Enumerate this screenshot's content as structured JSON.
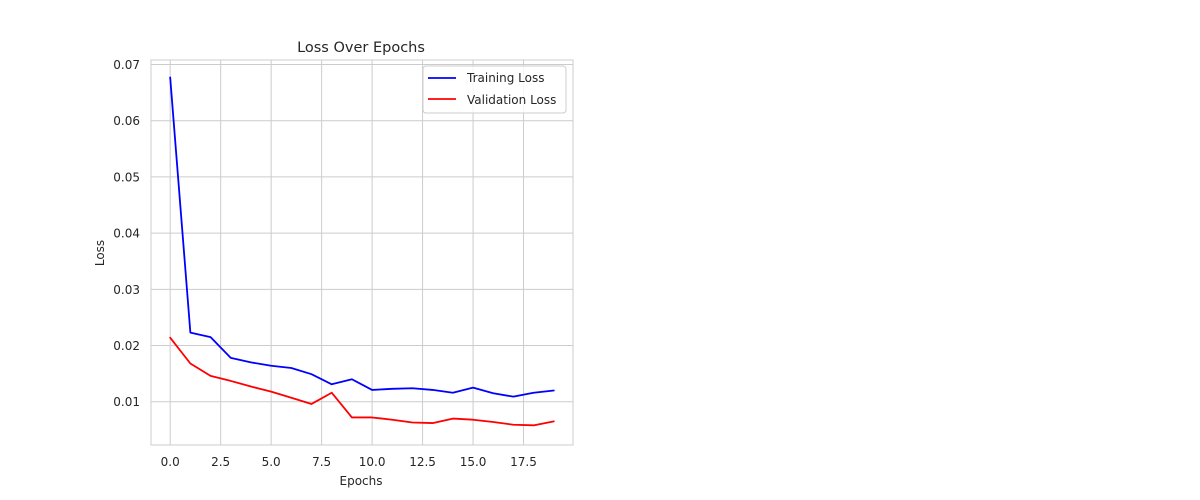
{
  "chart_data": {
    "type": "line",
    "title": "Loss Over Epochs",
    "xlabel": "Epochs",
    "ylabel": "Loss",
    "x": [
      0,
      1,
      2,
      3,
      4,
      5,
      6,
      7,
      8,
      9,
      10,
      11,
      12,
      13,
      14,
      15,
      16,
      17,
      18,
      19
    ],
    "xlim": [
      -0.95,
      19.95
    ],
    "ylim": [
      0.0023,
      0.0708
    ],
    "xticks": [
      0.0,
      2.5,
      5.0,
      7.5,
      10.0,
      12.5,
      15.0,
      17.5
    ],
    "xtick_labels": [
      "0.0",
      "2.5",
      "5.0",
      "7.5",
      "10.0",
      "12.5",
      "15.0",
      "17.5"
    ],
    "yticks": [
      0.01,
      0.02,
      0.03,
      0.04,
      0.05,
      0.06,
      0.07
    ],
    "ytick_labels": [
      "0.01",
      "0.02",
      "0.03",
      "0.04",
      "0.05",
      "0.06",
      "0.07"
    ],
    "grid": true,
    "legend_position": "top-right",
    "series": [
      {
        "name": "Training Loss",
        "color": "#0000ff",
        "values": [
          0.0677,
          0.0223,
          0.0215,
          0.0178,
          0.017,
          0.0164,
          0.016,
          0.0149,
          0.0131,
          0.014,
          0.0121,
          0.0123,
          0.0124,
          0.0121,
          0.0116,
          0.0125,
          0.0115,
          0.0109,
          0.0116,
          0.012
        ]
      },
      {
        "name": "Validation Loss",
        "color": "#ff0000",
        "values": [
          0.0214,
          0.0168,
          0.0146,
          0.0137,
          0.0127,
          0.0118,
          0.0107,
          0.0096,
          0.0116,
          0.0072,
          0.0072,
          0.0068,
          0.0063,
          0.0062,
          0.007,
          0.0068,
          0.0064,
          0.0059,
          0.0058,
          0.0065
        ]
      }
    ]
  }
}
